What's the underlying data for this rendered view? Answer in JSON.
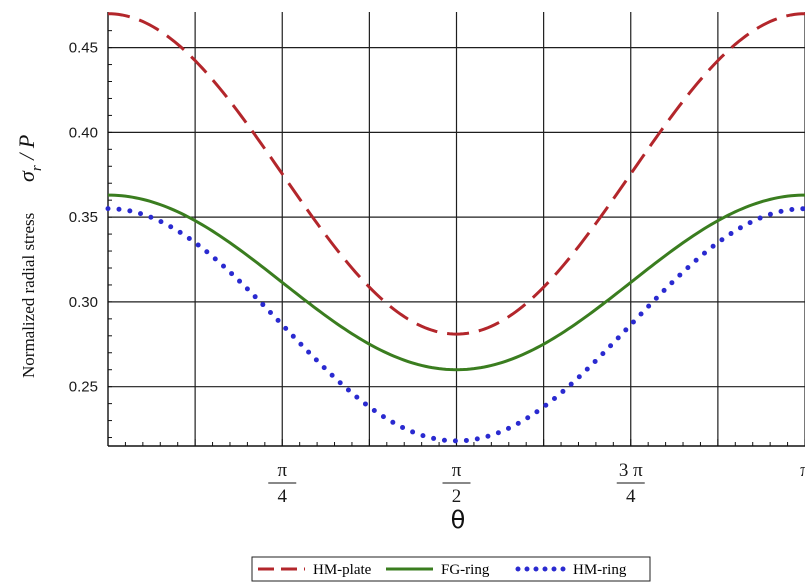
{
  "chart_data": {
    "type": "line",
    "xlabel": "θ",
    "ylabel_text": "Normalized radial stress",
    "ylabel_math": "σ_r / P",
    "xlim": [
      0,
      3.14159
    ],
    "ylim": [
      0.215,
      0.471
    ],
    "grid": true,
    "y_ticks": [
      0.25,
      0.3,
      0.35,
      0.4,
      0.45
    ],
    "y_tick_labels": [
      "0.25",
      "0.30",
      "0.35",
      "0.40",
      "0.45"
    ],
    "x_ticks": [
      {
        "value": 0.7854,
        "num": "π",
        "den": "4"
      },
      {
        "value": 1.5708,
        "num": "π",
        "den": "2"
      },
      {
        "value": 2.3562,
        "num": "3 π",
        "den": "4"
      },
      {
        "value": 3.14159,
        "num": "π",
        "den": ""
      }
    ],
    "x_grid": [
      0.3927,
      0.7854,
      1.1781,
      1.5708,
      1.9635,
      2.3562,
      2.7489,
      3.14159
    ],
    "series": [
      {
        "name": "HM-plate",
        "style": "dashed",
        "color": "#b3262b",
        "mean": 0.3755,
        "amp": 0.0945
      },
      {
        "name": "FG-ring",
        "style": "solid",
        "color": "#3a7d1f",
        "mean": 0.3115,
        "amp": 0.0515
      },
      {
        "name": "HM-ring",
        "style": "dotted",
        "color": "#2a2ad0",
        "mean": 0.2865,
        "amp": 0.0685
      }
    ],
    "legend": {
      "placement": "bottom-center"
    }
  }
}
